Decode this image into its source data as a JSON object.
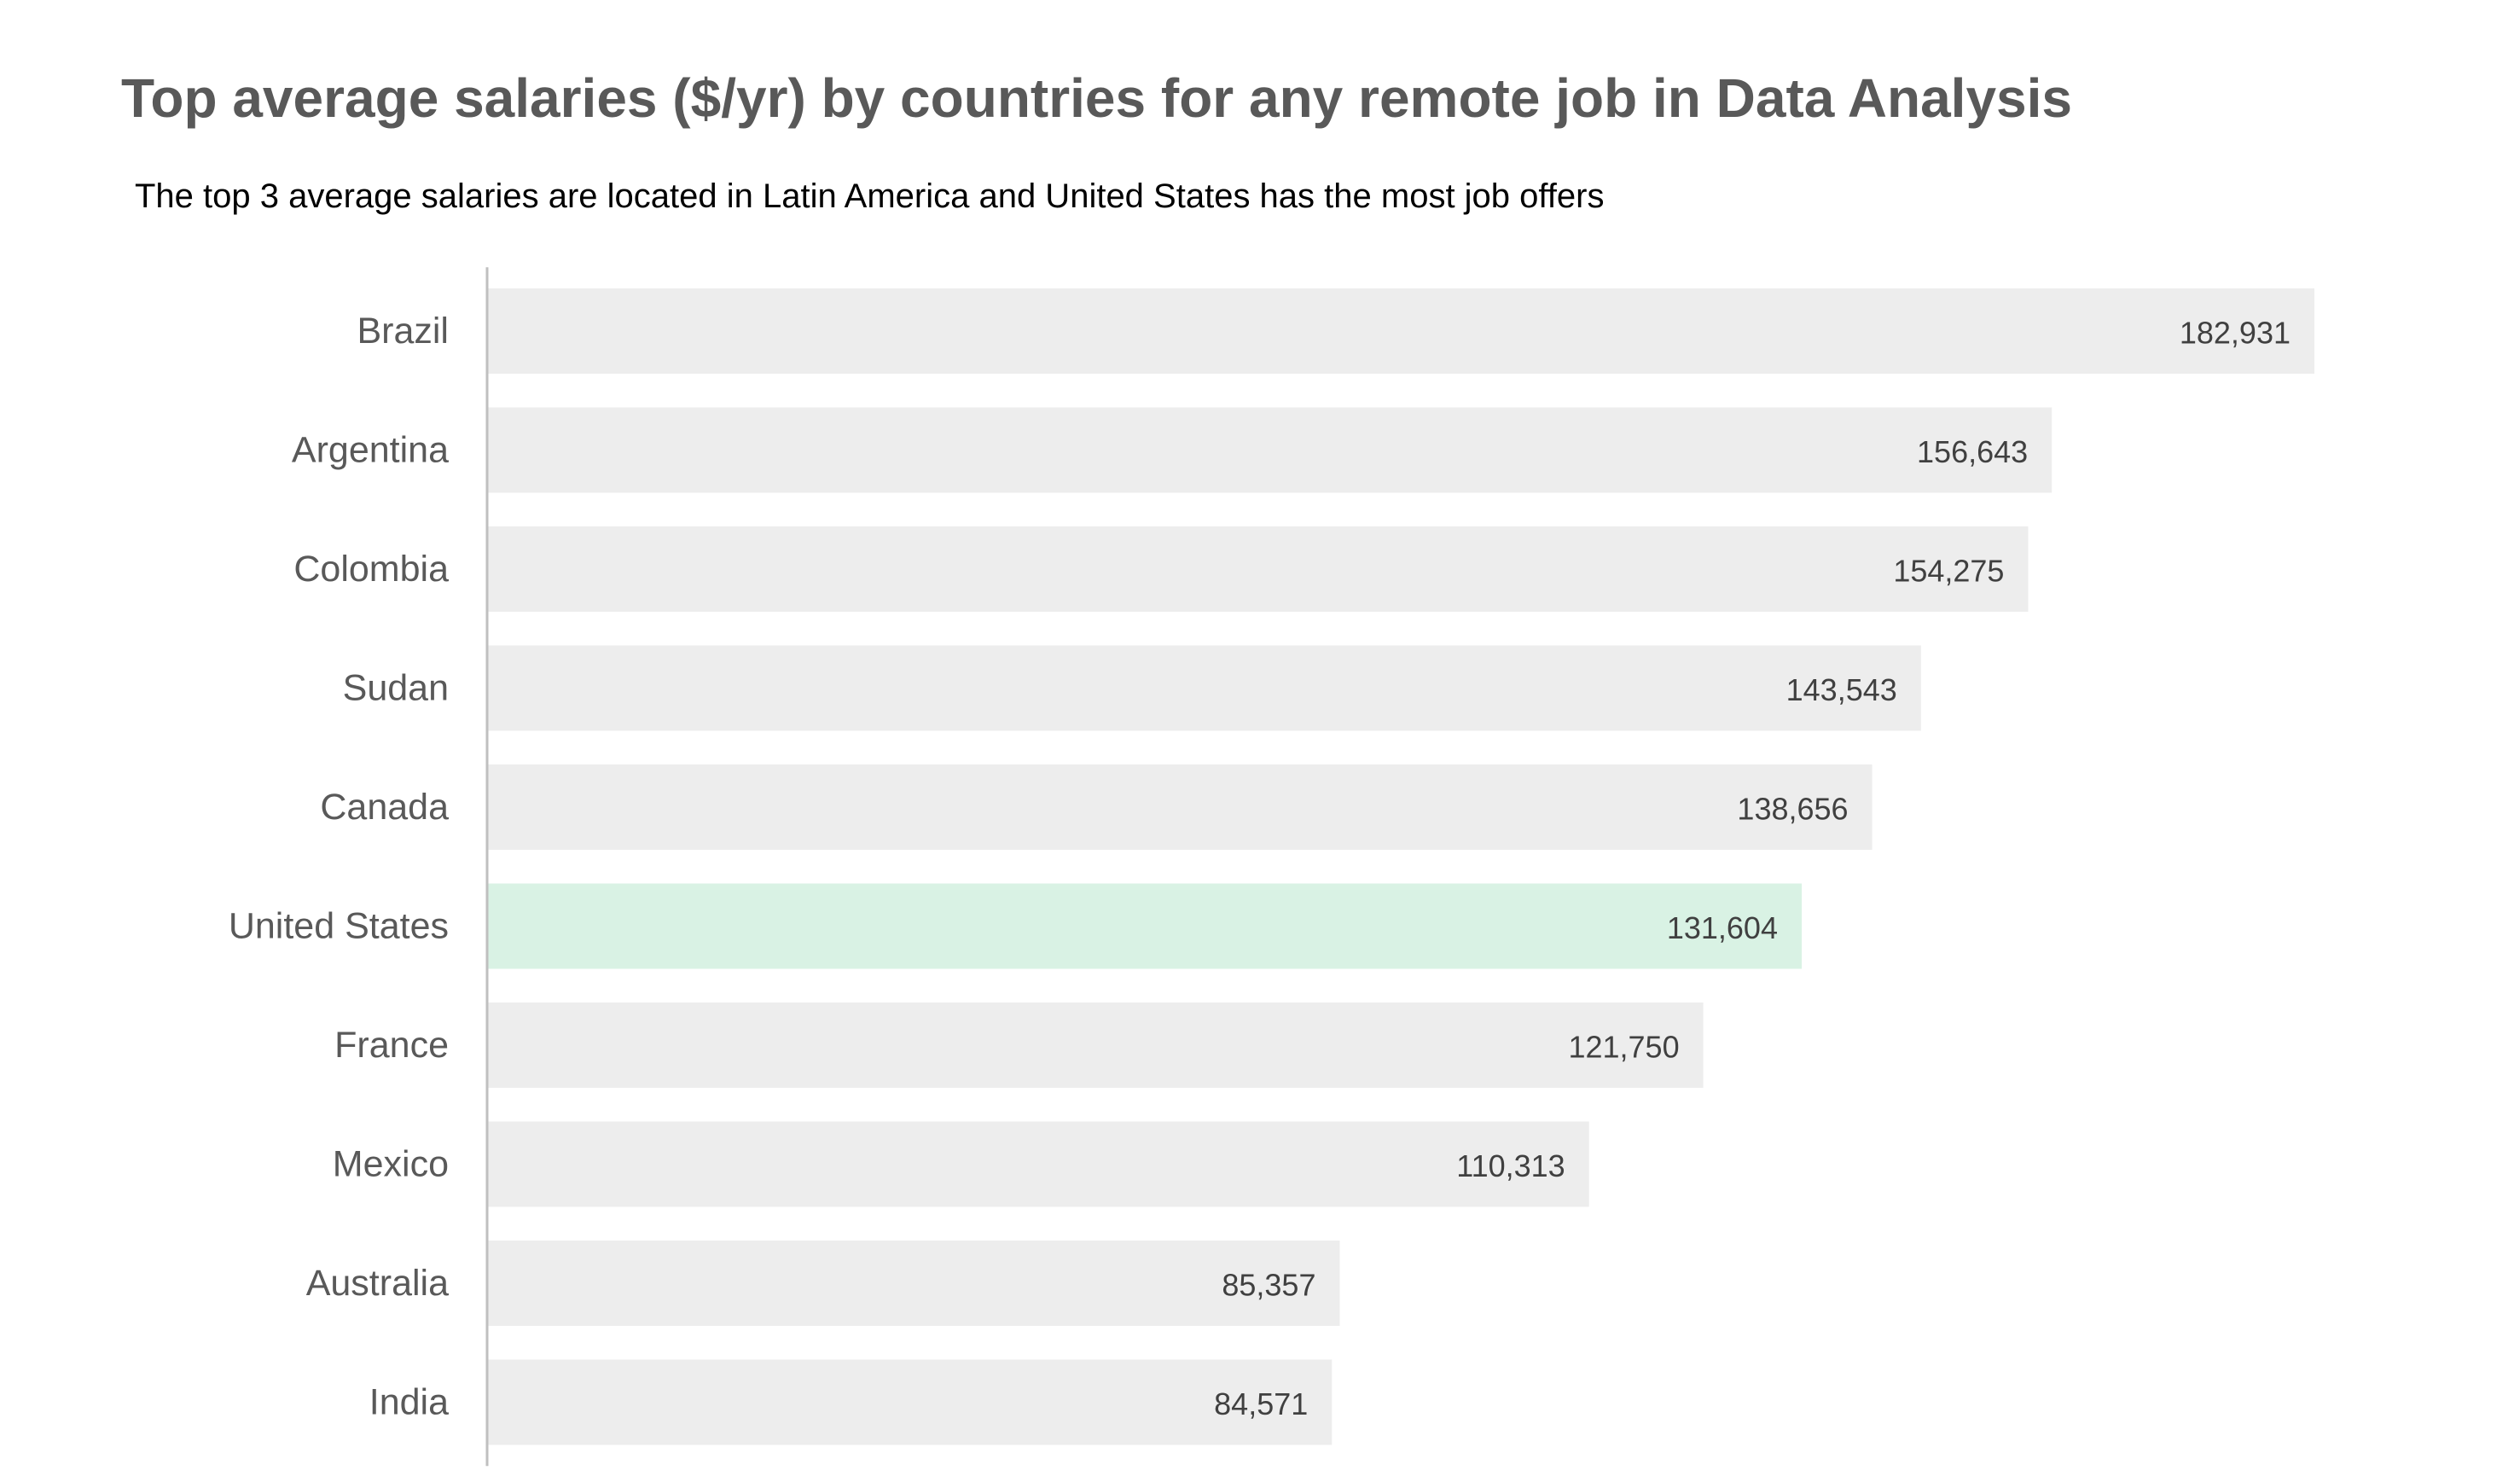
{
  "colors": {
    "title": "#595959",
    "subtitle": "#000000",
    "bar_default": "#EDEDED",
    "bar_highlight": "#D9F2E4",
    "axis_line": "#BFBFBF",
    "category_label": "#595959",
    "value_label": "#404040"
  },
  "chart_data": {
    "type": "bar",
    "orientation": "horizontal",
    "title": "Top average salaries ($/yr) by countries for any remote job in Data Analysis",
    "subtitle": "The top 3 average salaries are located in Latin America and United States has the most job offers",
    "xlabel": "",
    "ylabel": "",
    "categories": [
      "Brazil",
      "Argentina",
      "Colombia",
      "Sudan",
      "Canada",
      "United States",
      "France",
      "Mexico",
      "Australia",
      "India"
    ],
    "values": [
      182931,
      156643,
      154275,
      143543,
      138656,
      131604,
      121750,
      110313,
      85357,
      84571
    ],
    "value_labels": [
      "182,931",
      "156,643",
      "154,275",
      "143,543",
      "138,656",
      "131,604",
      "121,750",
      "110,313",
      "85,357",
      "84,571"
    ],
    "highlighted_category": "United States",
    "xlim": [
      0,
      182931
    ],
    "grid": false,
    "legend": "none",
    "data_labels": "inside-end"
  }
}
